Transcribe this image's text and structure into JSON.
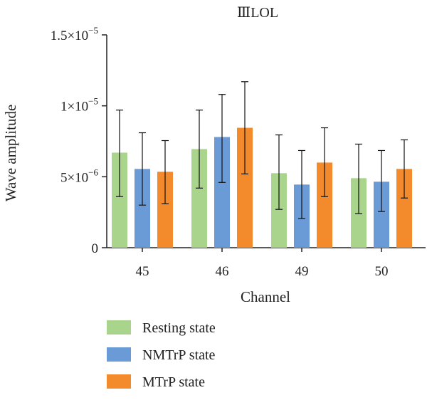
{
  "chart_data": {
    "type": "bar",
    "title": "ⅢLOL",
    "xlabel": "Channel",
    "ylabel": "Wave amplitude",
    "categories": [
      "45",
      "46",
      "49",
      "50"
    ],
    "ylim": [
      0,
      1.5e-05
    ],
    "yticks": [
      {
        "value": 0,
        "mantissa": "0",
        "exponent": ""
      },
      {
        "value": 5e-06,
        "mantissa": "5×10",
        "exponent": "−6"
      },
      {
        "value": 1e-05,
        "mantissa": "1×10",
        "exponent": "−5"
      },
      {
        "value": 1.5e-05,
        "mantissa": "1.5×10",
        "exponent": "−5"
      }
    ],
    "series": [
      {
        "name": "Resting state",
        "color": "#a8d48c",
        "values": [
          6.7e-06,
          6.95e-06,
          5.25e-06,
          4.9e-06
        ],
        "err_low": [
          3.6e-06,
          4.2e-06,
          2.7e-06,
          2.4e-06
        ],
        "err_high": [
          9.7e-06,
          9.7e-06,
          7.95e-06,
          7.3e-06
        ]
      },
      {
        "name": "NMTrP state",
        "color": "#6b9bd6",
        "values": [
          5.55e-06,
          7.8e-06,
          4.45e-06,
          4.65e-06
        ],
        "err_low": [
          3e-06,
          4.6e-06,
          2.05e-06,
          2.55e-06
        ],
        "err_high": [
          8.1e-06,
          1.08e-05,
          6.85e-06,
          6.85e-06
        ]
      },
      {
        "name": "MTrP state",
        "color": "#f38a2c",
        "values": [
          5.35e-06,
          8.45e-06,
          6e-06,
          5.55e-06
        ],
        "err_low": [
          3.1e-06,
          5.2e-06,
          3.6e-06,
          3.5e-06
        ],
        "err_high": [
          7.55e-06,
          1.17e-05,
          8.45e-06,
          7.6e-06
        ]
      }
    ],
    "legend_placement": "bottom-left",
    "grid": false
  }
}
